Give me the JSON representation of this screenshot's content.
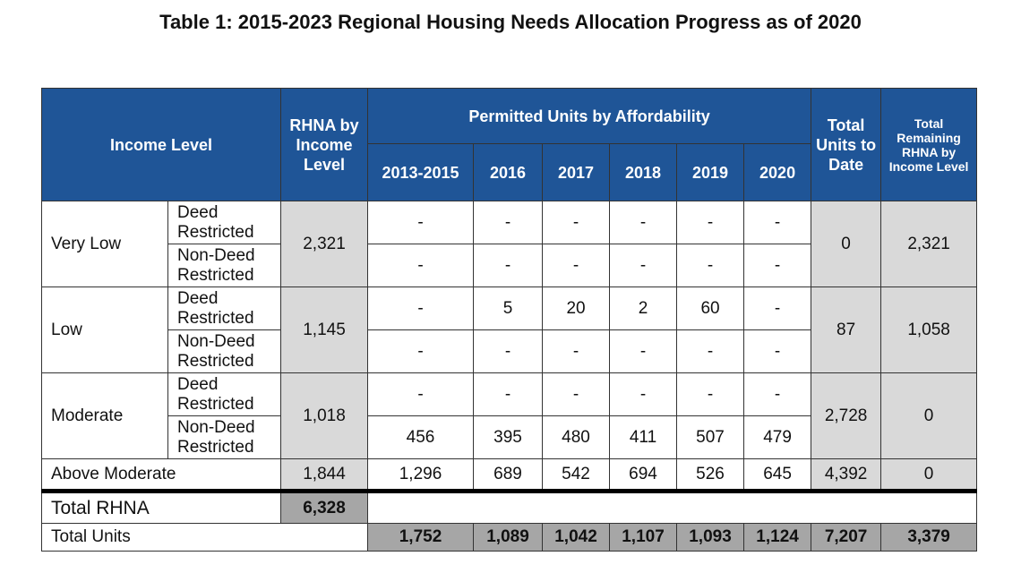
{
  "title": "Table 1: 2015-2023 Regional Housing Needs Allocation Progress as of 2020",
  "headers": {
    "income_level": "Income Level",
    "rhna_by_income": "RHNA by Income Level",
    "permitted": "Permitted Units by Affordability",
    "years": [
      "2013-2015",
      "2016",
      "2017",
      "2018",
      "2019",
      "2020"
    ],
    "total_units_to_date": "Total Units to Date",
    "total_remaining": "Total Remaining RHNA by Income Level"
  },
  "groups": [
    {
      "level": "Very Low",
      "rhna": "2,321",
      "total": "0",
      "remaining": "2,321",
      "rows": [
        {
          "type": "Deed Restricted",
          "values": [
            "-",
            "-",
            "-",
            "-",
            "-",
            "-"
          ]
        },
        {
          "type": "Non-Deed Restricted",
          "values": [
            "-",
            "-",
            "-",
            "-",
            "-",
            "-"
          ]
        }
      ]
    },
    {
      "level": "Low",
      "rhna": "1,145",
      "total": "87",
      "remaining": "1,058",
      "rows": [
        {
          "type": "Deed Restricted",
          "values": [
            "-",
            "5",
            "20",
            "2",
            "60",
            "-"
          ]
        },
        {
          "type": "Non-Deed Restricted",
          "values": [
            "-",
            "-",
            "-",
            "-",
            "-",
            "-"
          ]
        }
      ]
    },
    {
      "level": "Moderate",
      "rhna": "1,018",
      "total": "2,728",
      "remaining": "0",
      "rows": [
        {
          "type": "Deed Restricted",
          "values": [
            "-",
            "-",
            "-",
            "-",
            "-",
            "-"
          ]
        },
        {
          "type": "Non-Deed Restricted",
          "values": [
            "456",
            "395",
            "480",
            "411",
            "507",
            "479"
          ]
        }
      ]
    }
  ],
  "above_moderate": {
    "level": "Above Moderate",
    "rhna": "1,844",
    "values": [
      "1,296",
      "689",
      "542",
      "694",
      "526",
      "645"
    ],
    "total": "4,392",
    "remaining": "0"
  },
  "total_rhna": {
    "label": "Total RHNA",
    "value": "6,328"
  },
  "total_units": {
    "label": "Total Units",
    "values": [
      "1,752",
      "1,089",
      "1,042",
      "1,107",
      "1,093",
      "1,124"
    ],
    "total": "7,207",
    "remaining": "3,379"
  },
  "colors": {
    "header_blue": "#1f5597",
    "light_gray": "#d9d9d9",
    "dark_gray": "#a6a6a6"
  }
}
